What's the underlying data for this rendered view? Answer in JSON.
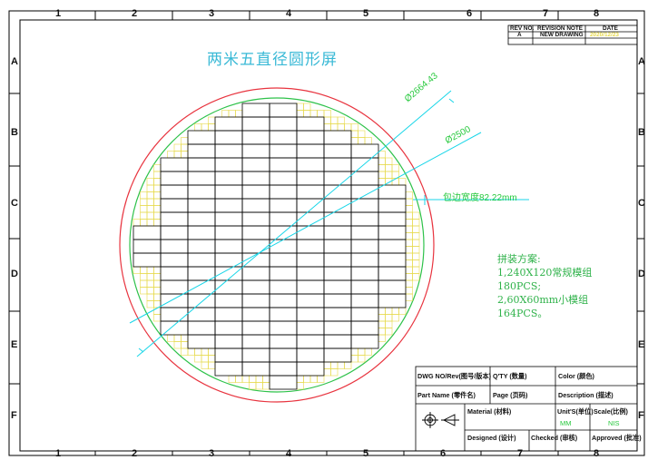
{
  "title": "两米五直径圆形屏",
  "zones": {
    "columns": [
      "1",
      "2",
      "3",
      "4",
      "5",
      "6",
      "7",
      "8"
    ],
    "rows": [
      "A",
      "B",
      "C",
      "D",
      "E",
      "F"
    ]
  },
  "revision_table": {
    "headers": [
      "REV NO.",
      "REVISION NOTE",
      "DATE"
    ],
    "row": [
      "A",
      "NEW DRAWING",
      "2020/12/23"
    ]
  },
  "dimensions": {
    "outer_diameter": "Ø2664.43",
    "inner_diameter": "Ø2500",
    "edge_width": "包边宽度82.22mm"
  },
  "assembly_notes": {
    "title": "拼装方案:",
    "lines": [
      "1,240X120常规模组",
      "180PCS;",
      "2,60X60mm小模组",
      "164PCS。"
    ]
  },
  "title_block": {
    "dwg_no": "DWG NO/Rev(图号/版本)",
    "qty": "Q'TY (数量)",
    "color": "Color (颜色)",
    "part_name": "Part Name (零件名)",
    "page": "Page (页码)",
    "description": "Description (描述)",
    "material": "Material (材料)",
    "units": "Unit'S(单位)",
    "scale": "Scale(比例)",
    "units_value": "MM",
    "scale_value": "NIS",
    "designed": "Designed (设计)",
    "checked": "Checked (审核)",
    "approved": "Approved (批准)"
  },
  "colors": {
    "border": "#000000",
    "outer_circle": "#e8343f",
    "inner_circle": "#2ec24a",
    "dimension_lines": "#18d6e8",
    "small_modules": "#e7d94a",
    "modules": "#000000",
    "title": "#39b9d6"
  }
}
